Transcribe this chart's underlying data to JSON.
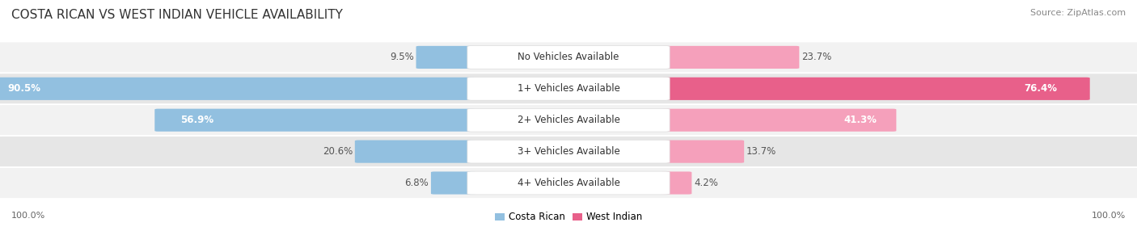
{
  "title": "COSTA RICAN VS WEST INDIAN VEHICLE AVAILABILITY",
  "source": "Source: ZipAtlas.com",
  "categories": [
    "No Vehicles Available",
    "1+ Vehicles Available",
    "2+ Vehicles Available",
    "3+ Vehicles Available",
    "4+ Vehicles Available"
  ],
  "costa_rican": [
    9.5,
    90.5,
    56.9,
    20.6,
    6.8
  ],
  "west_indian": [
    23.7,
    76.4,
    41.3,
    13.7,
    4.2
  ],
  "costa_rican_color": "#92C0E0",
  "west_indian_color_high": "#E8608A",
  "west_indian_color_low": "#F5A0BB",
  "costa_rican_label": "Costa Rican",
  "west_indian_label": "West Indian",
  "row_bg_light": "#F2F2F2",
  "row_bg_dark": "#E6E6E6",
  "title_fontsize": 11,
  "label_fontsize": 8.5,
  "value_fontsize": 8.5,
  "tick_fontsize": 8,
  "source_fontsize": 8
}
